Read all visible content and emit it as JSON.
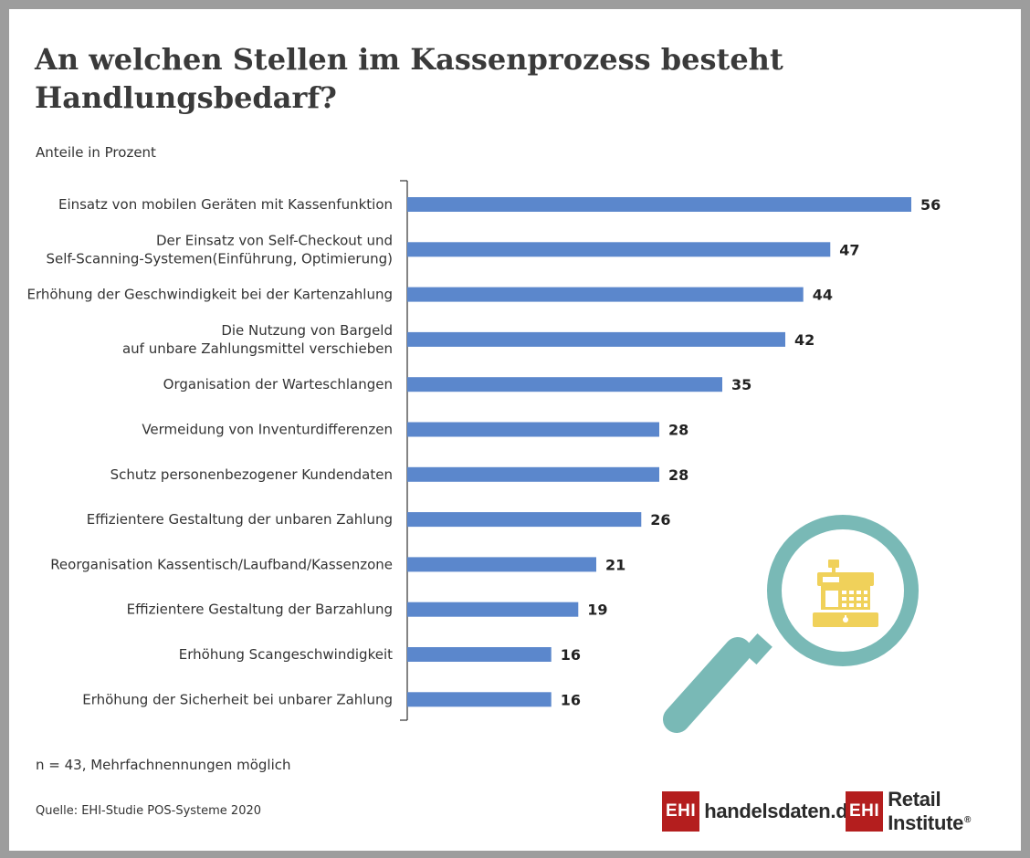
{
  "title": "An welchen Stellen im Kassenprozess besteht Handlungsbedarf?",
  "subtitle": "Anteile in Prozent",
  "note": "n = 43, Mehrfachnennungen möglich",
  "source": "Quelle: EHI-Studie POS-Systeme 2020",
  "logos": {
    "left_box": "EHI",
    "left_text": "handelsdaten.de",
    "right_box": "EHI",
    "right_text": "Retail Institute",
    "right_mark": "®"
  },
  "colors": {
    "bar": "#5b87cc",
    "magnifier": "#79b9b6",
    "register": "#f0d15a",
    "logo_red": "#b41e1e"
  },
  "illustration": {
    "magnifier_icon": "magnifying-glass",
    "register_icon": "cash-register"
  },
  "chart_data": {
    "type": "bar",
    "orientation": "horizontal",
    "title": "An welchen Stellen im Kassenprozess besteht Handlungsbedarf?",
    "subtitle": "Anteile in Prozent",
    "categories": [
      [
        "Einsatz von mobilen Geräten mit Kassenfunktion"
      ],
      [
        "Der Einsatz von Self-Checkout und",
        "Self-Scanning-Systemen(Einführung, Optimierung)"
      ],
      [
        "Erhöhung der Geschwindigkeit bei der Kartenzahlung"
      ],
      [
        "Die Nutzung von Bargeld",
        "auf unbare Zahlungsmittel verschieben"
      ],
      [
        "Organisation der Warteschlangen"
      ],
      [
        "Vermeidung von Inventurdifferenzen"
      ],
      [
        "Schutz personenbezogener Kundendaten"
      ],
      [
        "Effizientere Gestaltung der unbaren Zahlung"
      ],
      [
        "Reorganisation Kassentisch/Laufband/Kassenzone"
      ],
      [
        "Effizientere Gestaltung der Barzahlung"
      ],
      [
        "Erhöhung Scangeschwindigkeit"
      ],
      [
        "Erhöhung der Sicherheit bei unbarer Zahlung"
      ]
    ],
    "values": [
      56,
      47,
      44,
      42,
      35,
      28,
      28,
      26,
      21,
      19,
      16,
      16
    ],
    "value_max": 56,
    "grid": false,
    "legend": "none"
  }
}
